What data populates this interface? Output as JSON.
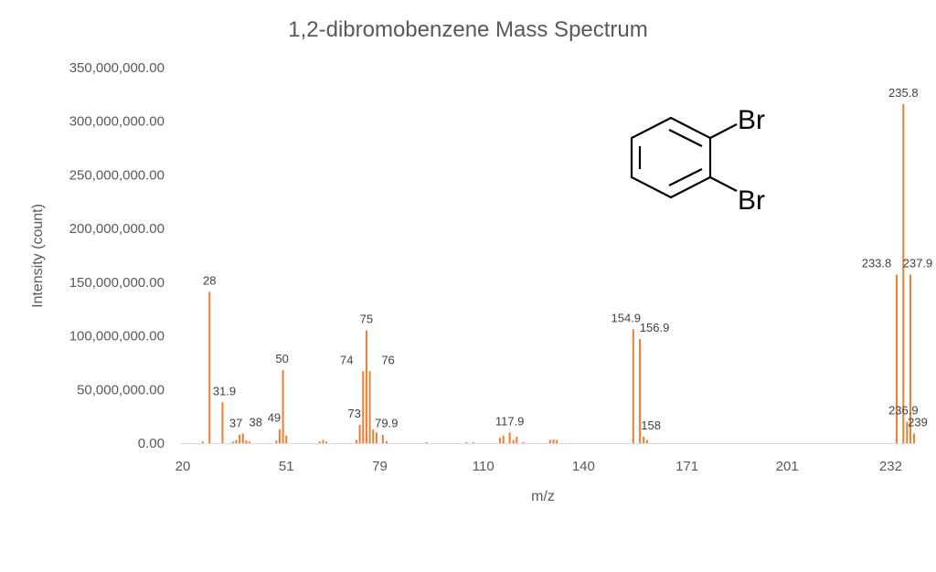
{
  "colors": {
    "series": "#ED7D31",
    "axis": "#D9D9D9",
    "text": "#595959"
  },
  "molecule": {
    "substituent_label": "Br"
  },
  "chart_data": {
    "type": "bar",
    "title": "1,2-dibromobenzene Mass Spectrum",
    "xlabel": "m/z",
    "ylabel": "Intensity (count)",
    "ylim": [
      0,
      350000000
    ],
    "xlim": [
      20,
      239
    ],
    "grid": false,
    "legend": "none",
    "y_ticks": [
      "0.00",
      "50,000,000.00",
      "100,000,000.00",
      "150,000,000.00",
      "200,000,000.00",
      "250,000,000.00",
      "300,000,000.00",
      "350,000,000.00"
    ],
    "y_tick_values": [
      0,
      50000000,
      100000000,
      150000000,
      200000000,
      250000000,
      300000000,
      350000000
    ],
    "x_ticks": [
      "20",
      "51",
      "79",
      "110",
      "140",
      "171",
      "201",
      "232"
    ],
    "x_tick_values": [
      20,
      51,
      79,
      110,
      140,
      171,
      201,
      232
    ],
    "peaks": [
      {
        "mz": 26,
        "intensity": 1500000
      },
      {
        "mz": 28,
        "intensity": 141000000,
        "label": "28"
      },
      {
        "mz": 31.9,
        "intensity": 38000000,
        "label": "31.9"
      },
      {
        "mz": 35,
        "intensity": 1500000
      },
      {
        "mz": 36,
        "intensity": 3000000
      },
      {
        "mz": 37,
        "intensity": 8000000,
        "label": "37"
      },
      {
        "mz": 38,
        "intensity": 9000000,
        "label": "38"
      },
      {
        "mz": 39,
        "intensity": 2500000
      },
      {
        "mz": 40,
        "intensity": 1500000
      },
      {
        "mz": 48,
        "intensity": 2500000
      },
      {
        "mz": 49,
        "intensity": 13000000,
        "label": "49"
      },
      {
        "mz": 50,
        "intensity": 68000000,
        "label": "50"
      },
      {
        "mz": 51,
        "intensity": 7000000
      },
      {
        "mz": 61,
        "intensity": 1500000
      },
      {
        "mz": 62,
        "intensity": 3000000
      },
      {
        "mz": 63,
        "intensity": 1500000
      },
      {
        "mz": 72,
        "intensity": 3000000
      },
      {
        "mz": 73,
        "intensity": 17000000,
        "label": "73"
      },
      {
        "mz": 74,
        "intensity": 67000000,
        "label": "74"
      },
      {
        "mz": 75,
        "intensity": 105000000,
        "label": "75"
      },
      {
        "mz": 76,
        "intensity": 67000000,
        "label": "76"
      },
      {
        "mz": 77,
        "intensity": 13000000
      },
      {
        "mz": 78,
        "intensity": 10000000
      },
      {
        "mz": 79.9,
        "intensity": 8000000,
        "label": "79.9"
      },
      {
        "mz": 81,
        "intensity": 2000000
      },
      {
        "mz": 93,
        "intensity": 1000000
      },
      {
        "mz": 105,
        "intensity": 1000000
      },
      {
        "mz": 107,
        "intensity": 1000000
      },
      {
        "mz": 115,
        "intensity": 5000000
      },
      {
        "mz": 116,
        "intensity": 7000000
      },
      {
        "mz": 117.9,
        "intensity": 10000000,
        "label": "117.9"
      },
      {
        "mz": 119,
        "intensity": 3000000
      },
      {
        "mz": 120,
        "intensity": 6000000
      },
      {
        "mz": 122,
        "intensity": 1000000
      },
      {
        "mz": 130,
        "intensity": 3000000
      },
      {
        "mz": 131,
        "intensity": 3500000
      },
      {
        "mz": 132,
        "intensity": 3000000
      },
      {
        "mz": 154.9,
        "intensity": 106000000,
        "label": "154.9"
      },
      {
        "mz": 156.9,
        "intensity": 97000000,
        "label": "156.9"
      },
      {
        "mz": 158,
        "intensity": 6000000,
        "label": "158"
      },
      {
        "mz": 159,
        "intensity": 3000000
      },
      {
        "mz": 233.8,
        "intensity": 157000000,
        "label": "233.8"
      },
      {
        "mz": 235.8,
        "intensity": 316000000,
        "label": "235.8"
      },
      {
        "mz": 236.9,
        "intensity": 20000000,
        "label": "236.9"
      },
      {
        "mz": 237.9,
        "intensity": 157000000,
        "label": "237.9"
      },
      {
        "mz": 239,
        "intensity": 9000000,
        "label": "239"
      }
    ]
  }
}
